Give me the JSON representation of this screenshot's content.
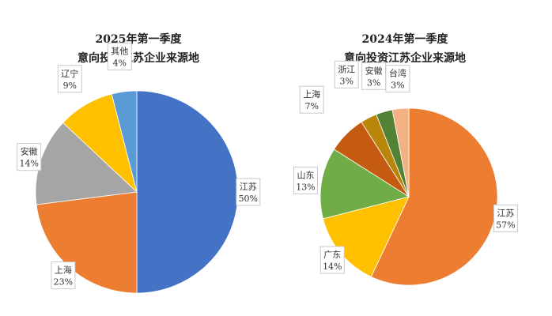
{
  "chart_data": [
    {
      "type": "pie",
      "title": "2025年第一季度",
      "subtitle": "意向投资江苏企业来源地",
      "slices": [
        {
          "name": "江苏",
          "value": 50,
          "label": "50%",
          "color": "#4472c4"
        },
        {
          "name": "上海",
          "value": 23,
          "label": "23%",
          "color": "#ed7d31"
        },
        {
          "name": "安徽",
          "value": 14,
          "label": "14%",
          "color": "#a5a5a5"
        },
        {
          "name": "辽宁",
          "value": 9,
          "label": "9%",
          "color": "#ffc000"
        },
        {
          "name": "其他",
          "value": 4,
          "label": "4%",
          "color": "#5b9bd5"
        }
      ]
    },
    {
      "type": "pie",
      "title": "2024年第一季度",
      "subtitle": "意向投资江苏企业来源地",
      "slices": [
        {
          "name": "江苏",
          "value": 57,
          "label": "57%",
          "color": "#ed7d31"
        },
        {
          "name": "广东",
          "value": 14,
          "label": "14%",
          "color": "#ffc000"
        },
        {
          "name": "山东",
          "value": 13,
          "label": "13%",
          "color": "#70ad47"
        },
        {
          "name": "上海",
          "value": 7,
          "label": "7%",
          "color": "#c55a11"
        },
        {
          "name": "浙江",
          "value": 3,
          "label": "3%",
          "color": "#b8860b"
        },
        {
          "name": "安徽",
          "value": 3,
          "label": "3%",
          "color": "#548235"
        },
        {
          "name": "台湾",
          "value": 3,
          "label": "3%",
          "color": "#f4b183"
        }
      ]
    }
  ]
}
